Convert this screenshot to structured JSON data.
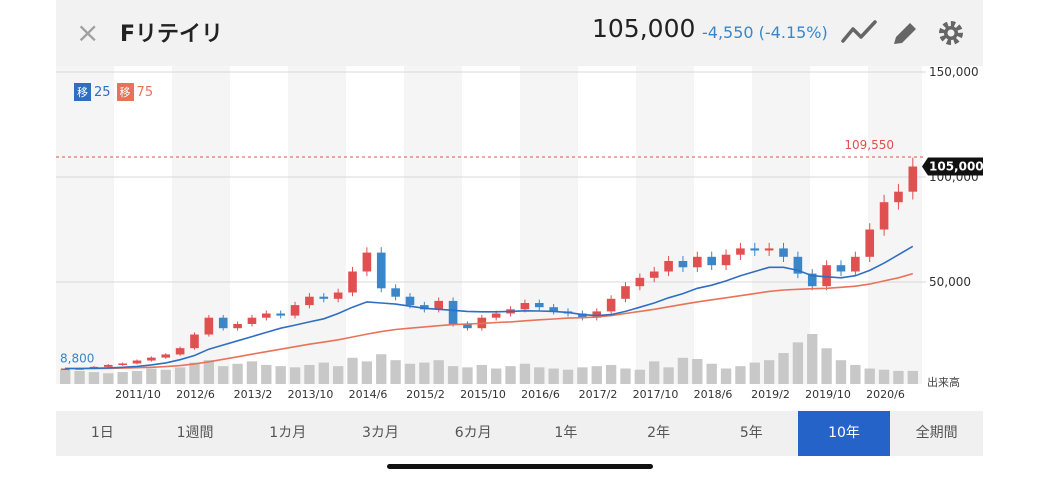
{
  "header": {
    "close_icon": "×",
    "title": "Fリテイリ",
    "price": "105,000",
    "change": "-4,550 (-4.15%)",
    "colors": {
      "change": "#3a86c8"
    }
  },
  "legend": {
    "ma25_tag": "移",
    "ma25_value": "25",
    "ma75_tag": "移",
    "ma75_value": "75",
    "colors": {
      "ma25": "#2f6fc1",
      "ma75": "#e8735a"
    }
  },
  "chart_data": {
    "type": "candlestick",
    "y_axis_labels": [
      "150,000",
      "100,000",
      "50,000"
    ],
    "ylim": [
      0,
      150000
    ],
    "x_tick_labels": [
      "2011/10",
      "2012/6",
      "2013/2",
      "2013/10",
      "2014/6",
      "2015/2",
      "2015/10",
      "2016/6",
      "2017/2",
      "2017/10",
      "2018/6",
      "2019/2",
      "2019/10",
      "2020/6"
    ],
    "high_label": "109,550",
    "high_value": 109550,
    "last_label": "105,000",
    "last_value": 105000,
    "start_label": "8,800",
    "start_value": 8800,
    "volume_label": "出来高",
    "close_series": [
      8800,
      8900,
      9600,
      10500,
      11200,
      12600,
      14000,
      15500,
      18500,
      25000,
      33000,
      28000,
      30000,
      33000,
      35000,
      34000,
      39000,
      43000,
      42000,
      45000,
      55000,
      64000,
      47000,
      43000,
      39000,
      37000,
      41000,
      30000,
      28000,
      33000,
      35000,
      37000,
      40000,
      38000,
      36000,
      35000,
      33000,
      36000,
      42000,
      48000,
      52000,
      55000,
      60000,
      57000,
      62000,
      58000,
      63000,
      66000,
      65000,
      66000,
      62000,
      54000,
      48000,
      58000,
      55000,
      62000,
      75000,
      88000,
      93000,
      105000
    ],
    "ma25_series": [
      8800,
      8800,
      8900,
      9100,
      9400,
      9800,
      10500,
      11500,
      13000,
      15000,
      18000,
      20000,
      22000,
      24000,
      26000,
      28000,
      29500,
      31000,
      32500,
      35000,
      38000,
      40500,
      40000,
      39500,
      38500,
      37500,
      37000,
      36500,
      36000,
      35800,
      35800,
      36000,
      36300,
      36200,
      36000,
      35500,
      34500,
      34000,
      34500,
      36000,
      38000,
      40000,
      42500,
      44500,
      47000,
      48500,
      50500,
      53000,
      55000,
      57000,
      57000,
      55500,
      53000,
      52500,
      52000,
      53000,
      55500,
      59000,
      63000,
      67000
    ],
    "ma75_series": [
      8800,
      8800,
      8850,
      8900,
      9000,
      9200,
      9400,
      9700,
      10200,
      11000,
      12000,
      13200,
      14400,
      15600,
      16800,
      18000,
      19200,
      20400,
      21400,
      22500,
      23800,
      25200,
      26400,
      27400,
      28000,
      28600,
      29200,
      29700,
      30000,
      30300,
      30700,
      31000,
      31500,
      32000,
      32400,
      32800,
      33000,
      33400,
      34000,
      35000,
      36000,
      37000,
      38200,
      39400,
      40500,
      41500,
      42500,
      43500,
      44500,
      45500,
      46200,
      46500,
      46800,
      47000,
      47500,
      48000,
      49000,
      50500,
      52000,
      54000
    ],
    "volume_series": [
      12,
      11,
      10,
      9,
      10,
      11,
      13,
      12,
      14,
      18,
      20,
      15,
      17,
      19,
      16,
      15,
      14,
      16,
      18,
      15,
      22,
      19,
      25,
      20,
      17,
      18,
      20,
      15,
      14,
      16,
      13,
      15,
      17,
      14,
      13,
      12,
      14,
      15,
      16,
      13,
      12,
      19,
      14,
      22,
      21,
      17,
      13,
      15,
      18,
      20,
      26,
      35,
      42,
      30,
      20,
      16,
      13,
      12,
      11,
      11
    ]
  },
  "tabs": {
    "items": [
      "1日",
      "1週間",
      "1カ月",
      "3カ月",
      "6カ月",
      "1年",
      "2年",
      "5年",
      "10年",
      "全期間"
    ],
    "active_index": 8,
    "colors": {
      "active_bg": "#2563c9"
    }
  }
}
